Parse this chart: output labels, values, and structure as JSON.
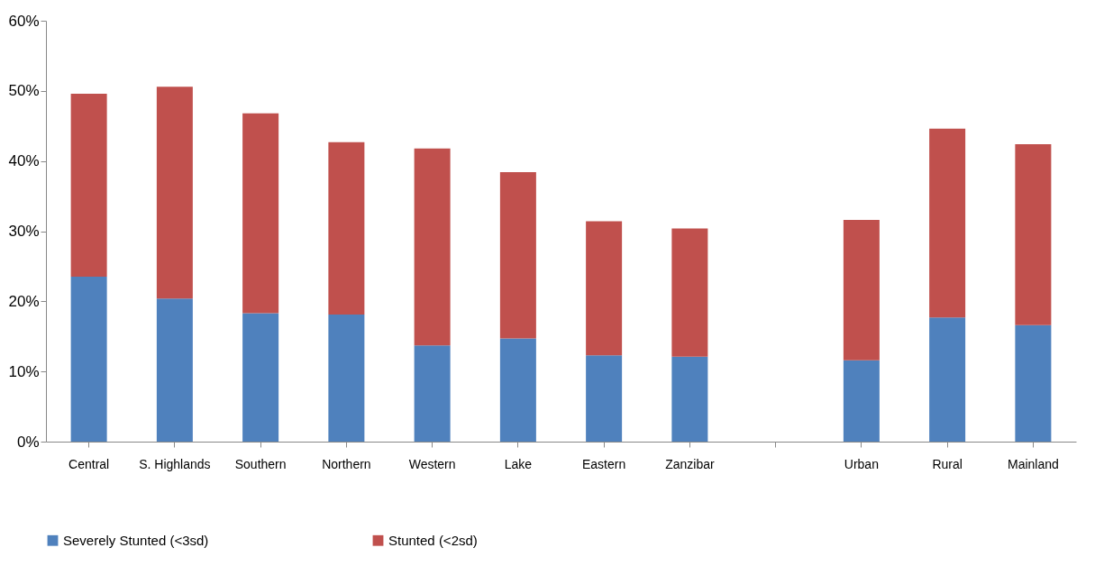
{
  "chart_data": {
    "type": "bar",
    "stacked": true,
    "categories": [
      "Central",
      "S. Highlands",
      "Southern",
      "Northern",
      "Western",
      "Lake",
      "Eastern",
      "Zanzibar",
      null,
      "Urban",
      "Rural",
      "Mainland"
    ],
    "series": [
      {
        "name": "Severely Stunted (<3sd)",
        "color": "#4f81bd",
        "values": [
          23.5,
          20.4,
          18.3,
          18.1,
          13.7,
          14.7,
          12.3,
          12.1,
          null,
          11.6,
          17.7,
          16.6
        ]
      },
      {
        "name": "Stunted (<2sd)",
        "color": "#c0504d",
        "values": [
          26.1,
          30.2,
          28.5,
          24.6,
          28.1,
          23.7,
          19.1,
          18.3,
          null,
          20.0,
          26.9,
          25.8
        ]
      }
    ],
    "ylim": [
      0,
      60
    ],
    "yticks": [
      {
        "value": 0,
        "label": "0%"
      },
      {
        "value": 10,
        "label": "10%"
      },
      {
        "value": 20,
        "label": "20%"
      },
      {
        "value": 30,
        "label": "30%"
      },
      {
        "value": 40,
        "label": "40%"
      },
      {
        "value": 50,
        "label": "50%"
      },
      {
        "value": 60,
        "label": "60%"
      }
    ],
    "grid": false,
    "legend": "bottom"
  }
}
